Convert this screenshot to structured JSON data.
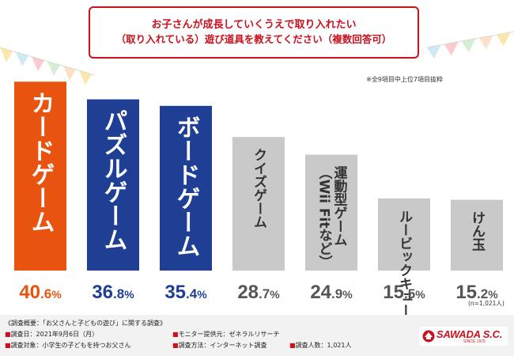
{
  "question": {
    "line1": "お子さんが成長していくうえで取り入れたい",
    "line2": "（取り入れている）遊び道具を教えてください（複数回答可）"
  },
  "note": "※全9項目中上位7項目抜粋",
  "chart_data": {
    "type": "bar",
    "categories": [
      "カードゲーム",
      "パズルゲーム",
      "ボードゲーム",
      "クイズゲーム",
      "運動型ゲーム（Wii Fitなど）",
      "ルービックキューブ",
      "けん玉"
    ],
    "bar_labels": [
      [
        "カードゲーム"
      ],
      [
        "パズルゲーム"
      ],
      [
        "ボードゲーム"
      ],
      [
        "クイズゲーム"
      ],
      [
        "運動型ゲーム",
        "（Wii Fitなど）"
      ],
      [
        "ルービックキューブ"
      ],
      [
        "けん玉"
      ]
    ],
    "values": [
      40.6,
      36.8,
      35.4,
      28.7,
      24.9,
      15.5,
      15.2
    ],
    "value_labels": [
      {
        "int": "40",
        "dec": ".6",
        "unit": "%"
      },
      {
        "int": "36",
        "dec": ".8",
        "unit": "%"
      },
      {
        "int": "35",
        "dec": ".4",
        "unit": "%"
      },
      {
        "int": "28",
        "dec": ".7",
        "unit": "%"
      },
      {
        "int": "24",
        "dec": ".9",
        "unit": "%"
      },
      {
        "int": "15",
        "dec": ".5",
        "unit": "%"
      },
      {
        "int": "15",
        "dec": ".2",
        "unit": "%"
      }
    ],
    "ylim": [
      0,
      42
    ],
    "grid": false,
    "colors": {
      "bars": [
        "#e8540f",
        "#1f3f95",
        "#1f3f95",
        "#c9c9c9",
        "#c9c9c9",
        "#c9c9c9",
        "#c9c9c9"
      ],
      "value_text": [
        "#e8540f",
        "#1f3f95",
        "#1f3f95",
        "#555555",
        "#555555",
        "#555555",
        "#555555"
      ],
      "label_text": [
        "#ffffff",
        "#ffffff",
        "#ffffff",
        "#333333",
        "#333333",
        "#333333",
        "#333333"
      ]
    }
  },
  "sample_note": "(n=1,021人)",
  "survey": {
    "title": "《調査概要：「お父さんと子どもの遊び」に関する調査》",
    "date": "調査日：2021年9月6日（月）",
    "target": "調査対象：小学生の子どもを持つお父さん",
    "provider": "モニター提供元：ゼネラルリサーチ",
    "method": "調査方法：インターネット調査",
    "count": "調査人数：1,021人",
    "bullet": "■"
  },
  "logo": {
    "name": "SAWADA S.C.",
    "since": "SINCE 1975"
  },
  "theme": {
    "accent": "#c8121f",
    "pennants": [
      "#f6d36b",
      "#a8d8ea",
      "#f4a3a8",
      "#b5e0b0",
      "#f9c89b"
    ]
  }
}
